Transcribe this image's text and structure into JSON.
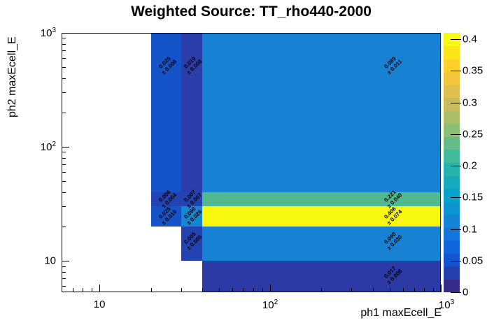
{
  "title": "Weighted Source: TT_rho440-2000",
  "x_axis": {
    "title": "ph1 maxEcell_E",
    "scale": "log",
    "min": 6,
    "max": 1000,
    "major_tick_values": [
      10,
      100,
      1000
    ],
    "major_tick_labels": [
      "10",
      "10^2",
      "10^3"
    ],
    "minor_tick_values": [
      7,
      8,
      9,
      20,
      30,
      40,
      50,
      60,
      70,
      80,
      90,
      200,
      300,
      400,
      500,
      600,
      700,
      800,
      900
    ]
  },
  "y_axis": {
    "title": "ph2 maxEcell_E",
    "scale": "log",
    "min": 5.3,
    "max": 1000,
    "major_tick_values": [
      10,
      100,
      1000
    ],
    "major_tick_labels": [
      "10",
      "10^2",
      "10^3"
    ],
    "minor_tick_values": [
      6,
      7,
      8,
      9,
      20,
      30,
      40,
      50,
      60,
      70,
      80,
      90,
      200,
      300,
      400,
      500,
      600,
      700,
      800,
      900
    ]
  },
  "z_axis": {
    "min": 0,
    "max": 0.41,
    "tick_values": [
      0,
      0.05,
      0.1,
      0.15,
      0.2,
      0.25,
      0.3,
      0.35,
      0.4
    ],
    "tick_labels": [
      "0",
      "0.05",
      "0.1",
      "0.15",
      "0.2",
      "0.25",
      "0.3",
      "0.35",
      "0.4"
    ]
  },
  "palette": {
    "name": "root-bird",
    "steps": 20,
    "anchors": [
      "#352A87",
      "#0F5CDE",
      "#1480D6",
      "#06A4CA",
      "#2EB7A4",
      "#87BF77",
      "#D1BB59",
      "#FEC832",
      "#F9FB0E"
    ]
  },
  "chart_data": {
    "type": "heatmap",
    "x_bin_edges": [
      20,
      30,
      40,
      1000
    ],
    "y_bin_edges": [
      5,
      10,
      20,
      30,
      40,
      1000
    ],
    "cells": [
      {
        "x": [
          20,
          30
        ],
        "y": [
          40,
          1000
        ],
        "value": 0.025,
        "error": 0.008,
        "value_label": "0.025",
        "error_label": "± 0.008",
        "color": "#1553C9"
      },
      {
        "x": [
          30,
          40
        ],
        "y": [
          40,
          1000
        ],
        "value": 0.019,
        "error": 0.008,
        "value_label": "0.019",
        "error_label": "± 0.008",
        "color": "#2A3DA8"
      },
      {
        "x": [
          40,
          1000
        ],
        "y": [
          40,
          1000
        ],
        "value": 0.089,
        "error": 0.011,
        "value_label": "0.089",
        "error_label": "± 0.011",
        "color": "#1782D4"
      },
      {
        "x": [
          20,
          30
        ],
        "y": [
          30,
          40
        ],
        "value": 0.006,
        "error": 0.004,
        "value_label": "0.006",
        "error_label": "± 0.004",
        "color": "#2443B3"
      },
      {
        "x": [
          30,
          40
        ],
        "y": [
          30,
          40
        ],
        "value": 0.007,
        "error": 0.007,
        "value_label": "0.007",
        "error_label": "± 0.007",
        "color": "#2443B3"
      },
      {
        "x": [
          40,
          1000
        ],
        "y": [
          30,
          40
        ],
        "value": 0.221,
        "error": 0.04,
        "value_label": "0.221",
        "error_label": "± 0.040",
        "color": "#50B98D"
      },
      {
        "x": [
          20,
          30
        ],
        "y": [
          20,
          30
        ],
        "value": 0.025,
        "error": 0.01,
        "value_label": "0.025",
        "error_label": "± 0.010",
        "color": "#1553C9"
      },
      {
        "x": [
          30,
          40
        ],
        "y": [
          20,
          30
        ],
        "value": 0.09,
        "error": 0.026,
        "value_label": "0.090",
        "error_label": "± 0.026",
        "color": "#1486D2"
      },
      {
        "x": [
          40,
          1000
        ],
        "y": [
          20,
          30
        ],
        "value": 0.406,
        "error": 0.074,
        "value_label": "0.406",
        "error_label": "± 0.074",
        "color": "#F7F70F"
      },
      {
        "x": [
          30,
          40
        ],
        "y": [
          10,
          20
        ],
        "value": 0.005,
        "error": 0.005,
        "value_label": "0.005",
        "error_label": "± 0.005",
        "color": "#2443B3"
      },
      {
        "x": [
          40,
          1000
        ],
        "y": [
          10,
          20
        ],
        "value": 0.09,
        "error": 0.03,
        "value_label": "0.090",
        "error_label": "± 0.030",
        "color": "#1782D4"
      },
      {
        "x": [
          40,
          1000
        ],
        "y": [
          5,
          10
        ],
        "value": 0.017,
        "error": 0.008,
        "value_label": "0.017",
        "error_label": "± 0.008",
        "color": "#2B3AA4"
      }
    ]
  }
}
